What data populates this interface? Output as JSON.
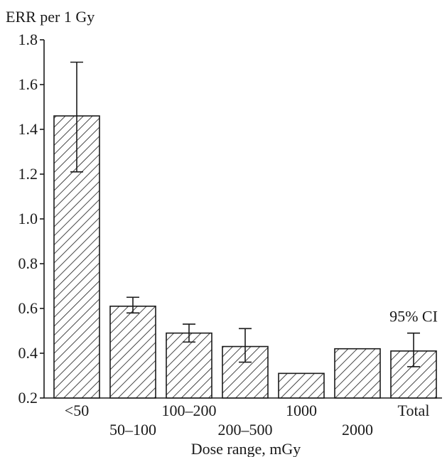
{
  "chart_data": {
    "type": "bar",
    "ylabel": "ERR per 1 Gy",
    "xlabel": "Dose range, mGy",
    "ylim": [
      0.2,
      1.8
    ],
    "yticks": [
      0.2,
      0.4,
      0.6,
      0.8,
      1.0,
      1.2,
      1.4,
      1.6,
      1.8
    ],
    "ytick_labels": [
      "0.2",
      "0.4",
      "0.6",
      "0.8",
      "1.0",
      "1.2",
      "1.4",
      "1.6",
      "1.8"
    ],
    "grid": false,
    "bar_fill": "diagonal-hatch",
    "colors": {
      "ink": "#1a1a1a",
      "background": "#ffffff"
    },
    "categories": [
      "<50",
      "50–100",
      "100–200",
      "200–500",
      "1000",
      "2000",
      "Total"
    ],
    "values": [
      1.46,
      0.61,
      0.49,
      0.43,
      0.31,
      0.42,
      0.41
    ],
    "ci_low": [
      1.21,
      0.58,
      0.45,
      0.36,
      null,
      null,
      0.34
    ],
    "ci_high": [
      1.7,
      0.65,
      0.53,
      0.51,
      null,
      null,
      0.49
    ],
    "annotation": "95% CI"
  }
}
